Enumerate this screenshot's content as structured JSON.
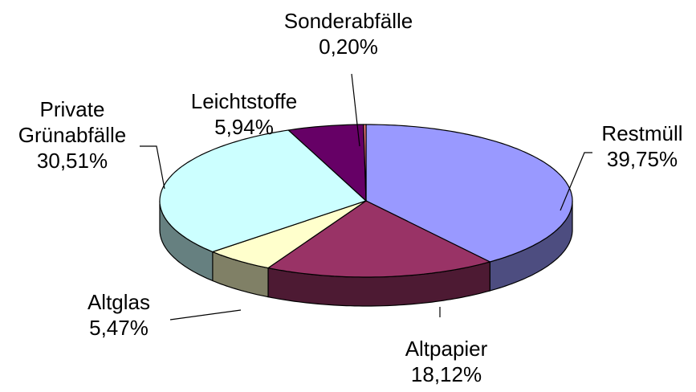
{
  "chart_data": {
    "type": "pie3d",
    "categories": [
      "Restmüll",
      "Altpapier",
      "Altglas",
      "Private Grünabfälle",
      "Leichtstoffe",
      "Sonderabfälle"
    ],
    "values": [
      39.75,
      18.12,
      5.47,
      30.51,
      5.94,
      0.2
    ],
    "value_labels": [
      "39,75%",
      "18,12%",
      "5,47%",
      "30,51%",
      "5,94%",
      "0,20%"
    ],
    "colors": [
      "#9999ff",
      "#993366",
      "#ffffcc",
      "#ccffff",
      "#660066",
      "#ff8080"
    ]
  }
}
